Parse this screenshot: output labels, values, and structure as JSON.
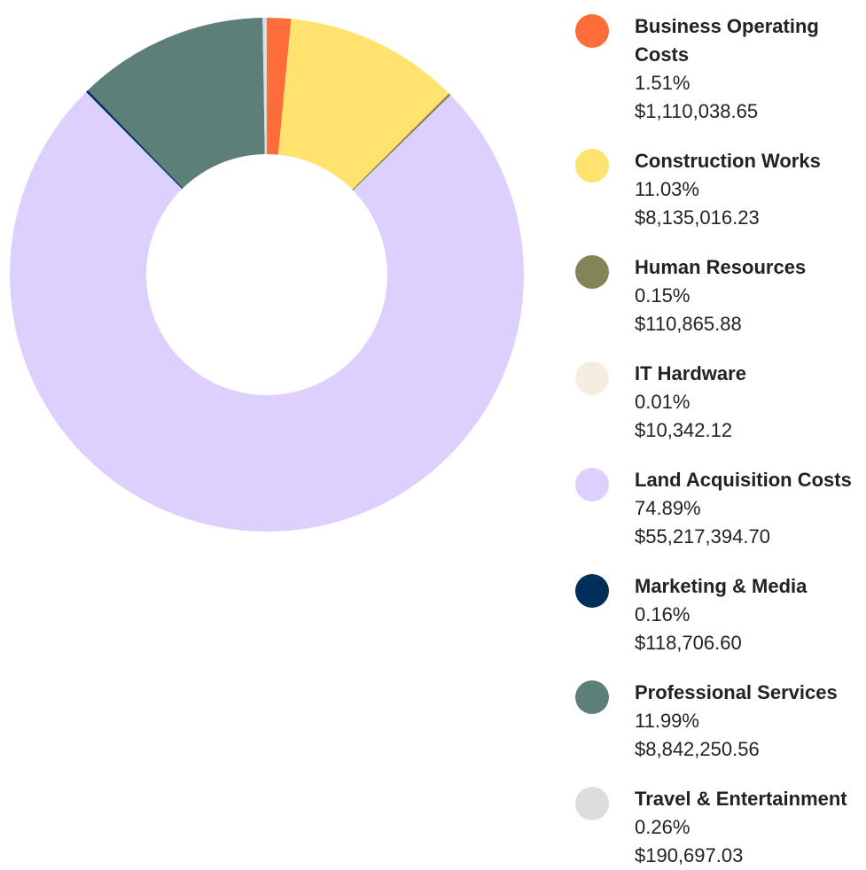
{
  "chart_data": {
    "type": "donut",
    "categories": [
      "Business Operating Costs",
      "Construction Works",
      "Human Resources",
      "IT Hardware",
      "Land Acquisition Costs",
      "Marketing & Media",
      "Professional Services",
      "Travel & Entertainment"
    ],
    "values": [
      1.51,
      11.03,
      0.15,
      0.01,
      74.89,
      0.16,
      11.99,
      0.26
    ],
    "value_labels": [
      "1.51%",
      "11.03%",
      "0.15%",
      "0.01%",
      "74.89%",
      "0.16%",
      "11.99%",
      "0.26%"
    ],
    "amounts": [
      1110038.65,
      8135016.23,
      110865.88,
      10342.12,
      55217394.7,
      118706.6,
      8842250.56,
      190697.03
    ],
    "amount_labels": [
      "$1,110,038.65",
      "$8,135,016.23",
      "$110,865.88",
      "$10,342.12",
      "$55,217,394.70",
      "$118,706.60",
      "$8,842,250.56",
      "$190,697.03"
    ],
    "colors": [
      "#fe6c3a",
      "#ffe36e",
      "#848556",
      "#f5ede0",
      "#ddd0fe",
      "#00305a",
      "#5d7f7a",
      "#dddddd"
    ]
  }
}
